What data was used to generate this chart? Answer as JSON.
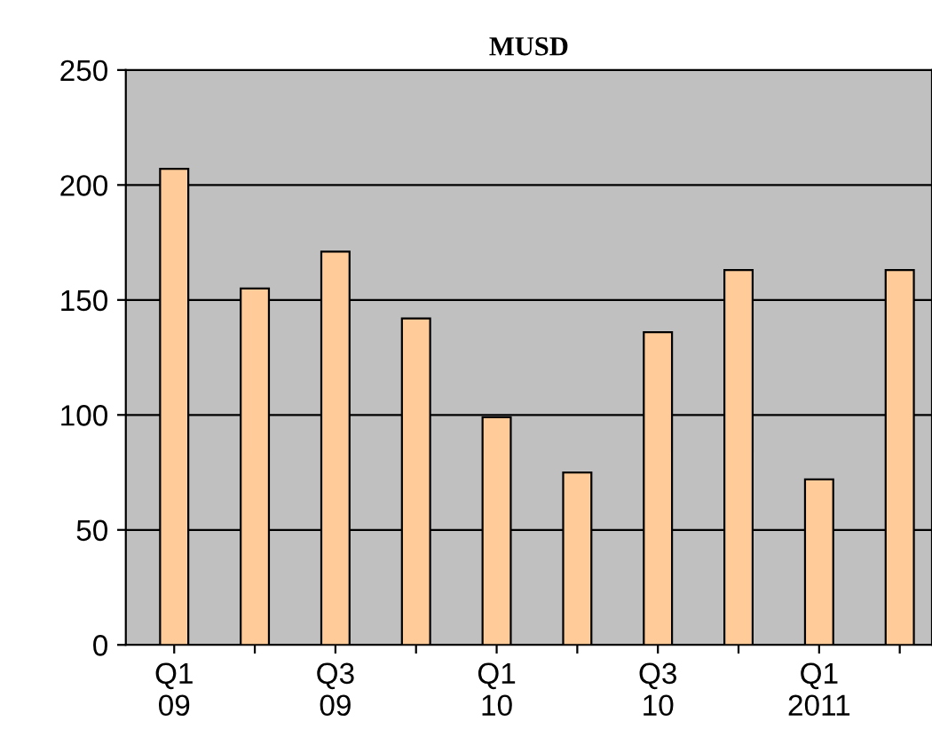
{
  "chart_data": {
    "type": "bar",
    "title": "MUSD",
    "categories": [
      "Q1\n09",
      null,
      "Q3\n09",
      null,
      "Q1\n10",
      null,
      "Q3\n10",
      null,
      "Q1\n2011",
      null
    ],
    "values": [
      207,
      155,
      171,
      142,
      99,
      75,
      136,
      163,
      72,
      163
    ],
    "color": "#ffcc99",
    "ylim": [
      0,
      250
    ],
    "yticks": [
      0,
      50,
      100,
      150,
      200,
      250
    ],
    "grid": "y"
  }
}
